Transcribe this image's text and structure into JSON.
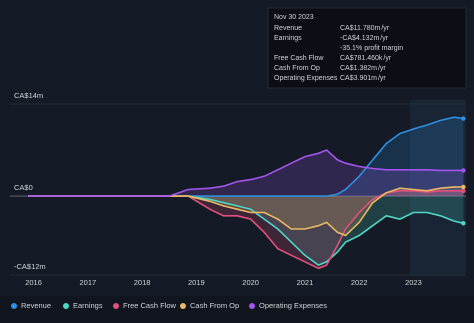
{
  "chart_data": {
    "type": "line",
    "x": [
      2015.9,
      2018.5,
      2018.85,
      2019.25,
      2019.5,
      2019.75,
      2020,
      2020.25,
      2020.5,
      2020.75,
      2021,
      2021.25,
      2021.4,
      2021.6,
      2021.75,
      2022,
      2022.25,
      2022.5,
      2022.75,
      2023,
      2023.25,
      2023.5,
      2023.75,
      2023.92
    ],
    "series": [
      {
        "name": "Revenue",
        "color": "#2f8fe0",
        "values": [
          0,
          0,
          0,
          0,
          0,
          0,
          0,
          0,
          0,
          0,
          0,
          0,
          0,
          0.3,
          1,
          3,
          5.5,
          8,
          9.5,
          10.2,
          10.8,
          11.5,
          12,
          11.78
        ]
      },
      {
        "name": "Earnings",
        "color": "#4fd6c6",
        "values": [
          0,
          0,
          0,
          -0.5,
          -1,
          -1.5,
          -2,
          -3.5,
          -5,
          -7,
          -9,
          -10.5,
          -10,
          -8.5,
          -7,
          -6,
          -4.5,
          -3,
          -3.5,
          -2.5,
          -2.5,
          -3,
          -3.8,
          -4.132
        ]
      },
      {
        "name": "Free Cash Flow",
        "color": "#e4507c",
        "values": [
          0,
          0,
          0,
          -2,
          -3,
          -3,
          -3.5,
          -5.5,
          -8,
          -9,
          -10,
          -11,
          -10.5,
          -7.5,
          -5,
          -2.5,
          -0.5,
          0.5,
          0.8,
          0.8,
          0.6,
          0.8,
          0.8,
          0.781
        ]
      },
      {
        "name": "Cash From Op",
        "color": "#e9b964",
        "values": [
          0,
          0,
          0,
          -0.8,
          -1.5,
          -2,
          -2.5,
          -2.5,
          -3.5,
          -5,
          -5,
          -4.5,
          -4,
          -5.5,
          -6,
          -4,
          -1,
          0.5,
          1.2,
          1.0,
          0.8,
          1.2,
          1.4,
          1.382
        ]
      },
      {
        "name": "Operating Expenses",
        "color": "#a455f0",
        "values": [
          0,
          0,
          1,
          1.2,
          1.5,
          2.2,
          2.5,
          3,
          4,
          5,
          6,
          6.5,
          7,
          5.5,
          5,
          4.5,
          4.2,
          4,
          4,
          4,
          4,
          3.9,
          3.9,
          3.901
        ]
      }
    ],
    "xlim": [
      2015.75,
      2023.95
    ],
    "xticks": [
      2016,
      2017,
      2018,
      2019,
      2020,
      2021,
      2022,
      2023
    ],
    "ylim": [
      -12,
      14
    ],
    "yticks": [
      {
        "value": 14,
        "label": "CA$14m"
      },
      {
        "value": 0,
        "label": "CA$0"
      },
      {
        "value": -12,
        "label": "-CA$12m"
      }
    ],
    "grid": true,
    "legend": "bottom"
  },
  "tooltip": {
    "date": "Nov 30 2023",
    "rows": [
      {
        "value": "CA$11.780m",
        "unit": "/yr"
      },
      {
        "value": "-CA$4.132m",
        "unit": "/yr"
      },
      {
        "value": "CA$781.460k",
        "unit": "/yr"
      },
      {
        "value": "CA$1.382m",
        "unit": "/yr"
      },
      {
        "value": "CA$3.901m",
        "unit": "/yr"
      }
    ],
    "margin": "-35.1%",
    "margin_label": "profit margin"
  }
}
